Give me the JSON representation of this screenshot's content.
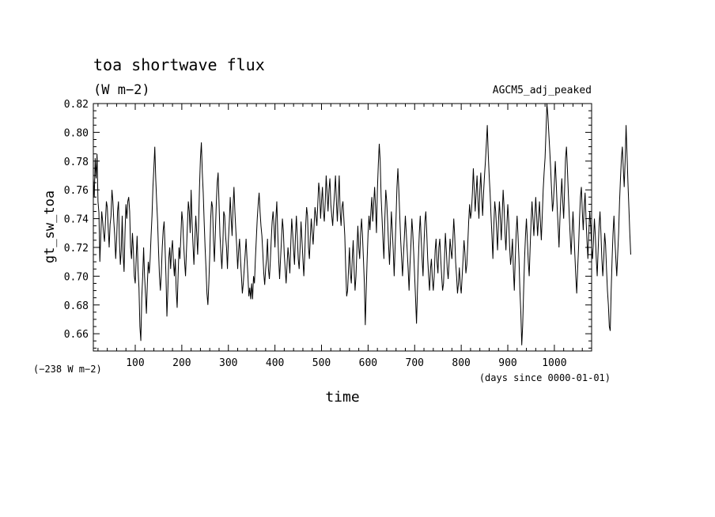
{
  "chart_data": {
    "type": "line",
    "title": "toa shortwave flux",
    "units": "(W m−2)",
    "experiment": "AGCM5_adj_peaked",
    "ylabel": "gt_sw_toa",
    "xlabel": "time",
    "offset_note": "(−238 W m−2)",
    "x_units_note": "(days since 0000-01-01)",
    "xlim": [
      10,
      1080
    ],
    "ylim": [
      0.648,
      0.82
    ],
    "xticks": [
      100,
      200,
      300,
      400,
      500,
      600,
      700,
      800,
      900,
      1000
    ],
    "yticks": [
      0.66,
      0.68,
      0.7,
      0.72,
      0.74,
      0.76,
      0.78,
      0.8,
      0.82
    ],
    "ytick_labels": [
      "0.66",
      "0.68",
      "0.70",
      "0.72",
      "0.74",
      "0.76",
      "0.78",
      "0.80",
      "0.82"
    ],
    "series": [
      {
        "x_start": 10,
        "x_step": 2,
        "y": [
          0.768,
          0.755,
          0.782,
          0.768,
          0.785,
          0.752,
          0.744,
          0.71,
          0.728,
          0.745,
          0.738,
          0.73,
          0.724,
          0.738,
          0.752,
          0.748,
          0.733,
          0.72,
          0.736,
          0.742,
          0.76,
          0.752,
          0.738,
          0.728,
          0.712,
          0.725,
          0.745,
          0.752,
          0.725,
          0.708,
          0.718,
          0.742,
          0.715,
          0.703,
          0.73,
          0.75,
          0.74,
          0.752,
          0.755,
          0.745,
          0.72,
          0.712,
          0.73,
          0.718,
          0.7,
          0.695,
          0.712,
          0.728,
          0.705,
          0.692,
          0.665,
          0.655,
          0.685,
          0.7,
          0.72,
          0.7,
          0.688,
          0.674,
          0.695,
          0.71,
          0.702,
          0.712,
          0.728,
          0.742,
          0.762,
          0.775,
          0.79,
          0.768,
          0.752,
          0.738,
          0.718,
          0.7,
          0.69,
          0.702,
          0.72,
          0.732,
          0.738,
          0.72,
          0.7,
          0.672,
          0.69,
          0.712,
          0.72,
          0.705,
          0.718,
          0.725,
          0.71,
          0.7,
          0.712,
          0.69,
          0.678,
          0.7,
          0.72,
          0.712,
          0.728,
          0.745,
          0.738,
          0.722,
          0.71,
          0.7,
          0.718,
          0.735,
          0.752,
          0.745,
          0.73,
          0.76,
          0.738,
          0.722,
          0.708,
          0.725,
          0.742,
          0.73,
          0.715,
          0.735,
          0.762,
          0.782,
          0.793,
          0.772,
          0.758,
          0.738,
          0.72,
          0.705,
          0.688,
          0.68,
          0.695,
          0.715,
          0.74,
          0.752,
          0.748,
          0.725,
          0.71,
          0.73,
          0.75,
          0.765,
          0.772,
          0.75,
          0.728,
          0.716,
          0.705,
          0.72,
          0.745,
          0.742,
          0.728,
          0.72,
          0.705,
          0.725,
          0.738,
          0.755,
          0.74,
          0.728,
          0.748,
          0.762,
          0.745,
          0.732,
          0.72,
          0.705,
          0.718,
          0.726,
          0.712,
          0.7,
          0.688,
          0.695,
          0.705,
          0.715,
          0.726,
          0.712,
          0.7,
          0.686,
          0.692,
          0.684,
          0.695,
          0.684,
          0.7,
          0.695,
          0.712,
          0.726,
          0.74,
          0.75,
          0.758,
          0.745,
          0.735,
          0.728,
          0.716,
          0.702,
          0.694,
          0.705,
          0.712,
          0.726,
          0.705,
          0.698,
          0.71,
          0.725,
          0.738,
          0.745,
          0.735,
          0.72,
          0.74,
          0.752,
          0.73,
          0.712,
          0.698,
          0.712,
          0.725,
          0.74,
          0.732,
          0.715,
          0.705,
          0.695,
          0.708,
          0.72,
          0.712,
          0.702,
          0.722,
          0.74,
          0.73,
          0.718,
          0.708,
          0.728,
          0.742,
          0.728,
          0.712,
          0.705,
          0.72,
          0.738,
          0.725,
          0.712,
          0.7,
          0.715,
          0.735,
          0.748,
          0.742,
          0.72,
          0.712,
          0.728,
          0.74,
          0.73,
          0.722,
          0.735,
          0.748,
          0.742,
          0.735,
          0.75,
          0.765,
          0.758,
          0.74,
          0.752,
          0.762,
          0.745,
          0.738,
          0.752,
          0.77,
          0.758,
          0.745,
          0.76,
          0.768,
          0.75,
          0.742,
          0.735,
          0.748,
          0.758,
          0.77,
          0.752,
          0.738,
          0.755,
          0.77,
          0.745,
          0.735,
          0.748,
          0.752,
          0.74,
          0.728,
          0.705,
          0.686,
          0.69,
          0.705,
          0.72,
          0.702,
          0.695,
          0.712,
          0.725,
          0.705,
          0.69,
          0.7,
          0.718,
          0.735,
          0.72,
          0.712,
          0.73,
          0.74,
          0.728,
          0.712,
          0.695,
          0.666,
          0.69,
          0.712,
          0.73,
          0.742,
          0.732,
          0.745,
          0.755,
          0.738,
          0.75,
          0.762,
          0.748,
          0.73,
          0.76,
          0.778,
          0.792,
          0.78,
          0.755,
          0.74,
          0.725,
          0.712,
          0.74,
          0.76,
          0.752,
          0.738,
          0.722,
          0.708,
          0.725,
          0.745,
          0.732,
          0.718,
          0.7,
          0.72,
          0.74,
          0.762,
          0.775,
          0.76,
          0.742,
          0.725,
          0.712,
          0.7,
          0.715,
          0.728,
          0.742,
          0.73,
          0.718,
          0.705,
          0.69,
          0.708,
          0.722,
          0.74,
          0.73,
          0.716,
          0.7,
          0.684,
          0.667,
          0.69,
          0.712,
          0.73,
          0.742,
          0.726,
          0.712,
          0.7,
          0.722,
          0.738,
          0.745,
          0.73,
          0.712,
          0.7,
          0.69,
          0.705,
          0.712,
          0.698,
          0.69,
          0.7,
          0.718,
          0.726,
          0.71,
          0.702,
          0.72,
          0.726,
          0.712,
          0.7,
          0.69,
          0.695,
          0.712,
          0.73,
          0.718,
          0.705,
          0.698,
          0.71,
          0.726,
          0.718,
          0.712,
          0.725,
          0.74,
          0.728,
          0.71,
          0.7,
          0.688,
          0.695,
          0.706,
          0.694,
          0.688,
          0.7,
          0.712,
          0.725,
          0.716,
          0.702,
          0.708,
          0.722,
          0.738,
          0.75,
          0.74,
          0.745,
          0.758,
          0.775,
          0.76,
          0.745,
          0.758,
          0.77,
          0.752,
          0.74,
          0.76,
          0.772,
          0.755,
          0.742,
          0.758,
          0.77,
          0.78,
          0.792,
          0.805,
          0.785,
          0.77,
          0.758,
          0.742,
          0.728,
          0.712,
          0.735,
          0.752,
          0.745,
          0.732,
          0.718,
          0.738,
          0.752,
          0.74,
          0.725,
          0.742,
          0.76,
          0.748,
          0.73,
          0.718,
          0.735,
          0.75,
          0.738,
          0.72,
          0.708,
          0.715,
          0.726,
          0.705,
          0.69,
          0.712,
          0.73,
          0.742,
          0.728,
          0.712,
          0.69,
          0.675,
          0.652,
          0.666,
          0.69,
          0.712,
          0.728,
          0.74,
          0.725,
          0.71,
          0.7,
          0.72,
          0.738,
          0.752,
          0.74,
          0.728,
          0.742,
          0.755,
          0.742,
          0.728,
          0.74,
          0.752,
          0.738,
          0.725,
          0.742,
          0.76,
          0.772,
          0.782,
          0.8,
          0.82,
          0.812,
          0.8,
          0.788,
          0.775,
          0.76,
          0.745,
          0.752,
          0.765,
          0.78,
          0.765,
          0.748,
          0.735,
          0.72,
          0.74,
          0.755,
          0.768,
          0.752,
          0.74,
          0.76,
          0.782,
          0.79,
          0.775,
          0.758,
          0.742,
          0.728,
          0.715,
          0.73,
          0.745,
          0.73,
          0.715,
          0.7,
          0.688,
          0.705,
          0.72,
          0.74,
          0.755,
          0.762,
          0.745,
          0.732,
          0.748,
          0.758,
          0.74,
          0.725,
          0.712,
          0.73,
          0.745,
          0.735,
          0.72,
          0.712,
          0.725,
          0.74,
          0.728,
          0.712,
          0.7,
          0.718,
          0.735,
          0.745,
          0.73,
          0.712,
          0.7,
          0.712,
          0.73,
          0.722,
          0.705,
          0.69,
          0.68,
          0.665,
          0.662,
          0.69,
          0.712,
          0.73,
          0.742,
          0.725,
          0.712,
          0.7,
          0.715,
          0.73,
          0.752,
          0.768,
          0.782,
          0.79,
          0.775,
          0.762,
          0.78,
          0.805,
          0.785,
          0.765,
          0.748,
          0.73,
          0.715
        ]
      }
    ],
    "grid": false,
    "legend": "none"
  }
}
